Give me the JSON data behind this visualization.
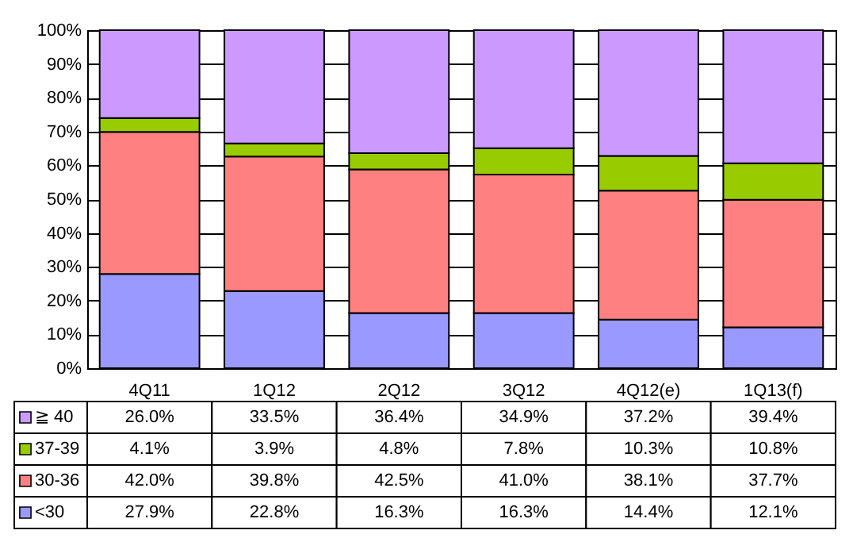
{
  "chart_data": {
    "type": "bar",
    "stacked": true,
    "categories": [
      "4Q11",
      "1Q12",
      "2Q12",
      "3Q12",
      "4Q12(e)",
      "1Q13(f)"
    ],
    "series": [
      {
        "name": "<30",
        "color": "#9999ff",
        "values": [
          27.9,
          22.8,
          16.3,
          16.3,
          14.4,
          12.1
        ],
        "value_labels": [
          "27.9%",
          "22.8%",
          "16.3%",
          "16.3%",
          "14.4%",
          "12.1%"
        ]
      },
      {
        "name": "30-36",
        "color": "#ff8080",
        "values": [
          42.0,
          39.8,
          42.5,
          41.0,
          38.1,
          37.7
        ],
        "value_labels": [
          "42.0%",
          "39.8%",
          "42.5%",
          "41.0%",
          "38.1%",
          "37.7%"
        ]
      },
      {
        "name": "37-39",
        "color": "#99cc00",
        "values": [
          4.1,
          3.9,
          4.8,
          7.8,
          10.3,
          10.8
        ],
        "value_labels": [
          "4.1%",
          "3.9%",
          "4.8%",
          "7.8%",
          "10.3%",
          "10.8%"
        ]
      },
      {
        "name": "≧ 40",
        "color": "#cc99ff",
        "values": [
          26.0,
          33.5,
          36.4,
          34.9,
          37.2,
          39.4
        ],
        "value_labels": [
          "26.0%",
          "33.5%",
          "36.4%",
          "34.9%",
          "37.2%",
          "39.4%"
        ]
      }
    ],
    "ylim": [
      0,
      100
    ],
    "yticks": [
      {
        "value": 0,
        "label": "0%"
      },
      {
        "value": 10,
        "label": "10%"
      },
      {
        "value": 20,
        "label": "20%"
      },
      {
        "value": 30,
        "label": "30%"
      },
      {
        "value": 40,
        "label": "40%"
      },
      {
        "value": 50,
        "label": "50%"
      },
      {
        "value": 60,
        "label": "60%"
      },
      {
        "value": 70,
        "label": "70%"
      },
      {
        "value": 80,
        "label": "80%"
      },
      {
        "value": 90,
        "label": "90%"
      },
      {
        "value": 100,
        "label": "100%"
      }
    ],
    "grid": "y",
    "legend": "bottom"
  }
}
